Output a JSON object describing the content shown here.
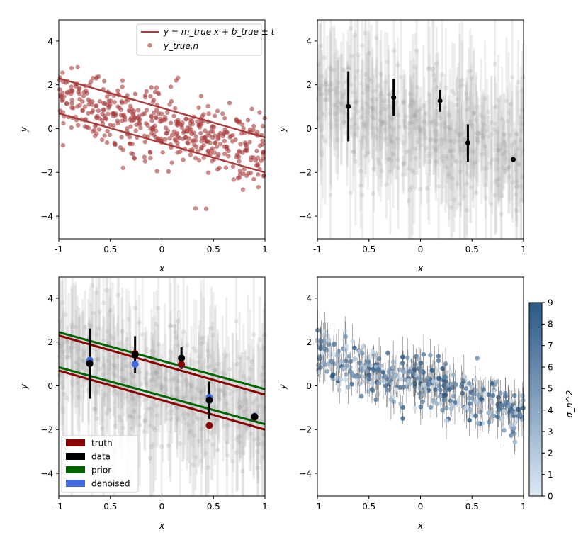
{
  "chart_data": [
    {
      "type": "scatter",
      "panel": "top-left",
      "xlabel": "x",
      "ylabel": "y",
      "xlim": [
        -1,
        1
      ],
      "ylim": [
        -5,
        5
      ],
      "xtick_labels": [
        "-1",
        "0.5",
        "0",
        "0.5",
        "1"
      ],
      "ytick_labels": [
        "−4",
        "−2",
        "0",
        "2",
        "4"
      ],
      "legend_position": "top-right",
      "legend": [
        {
          "label": "y = m_true x + b_true ± t",
          "kind": "line",
          "color": "#a83c3c"
        },
        {
          "label": "y_true,n",
          "kind": "point",
          "color": "#a83c3c"
        }
      ],
      "lines": [
        {
          "name": "upper",
          "slope": -1.35,
          "intercept": 0.98
        },
        {
          "name": "lower",
          "slope": -1.35,
          "intercept": -0.62
        }
      ],
      "points": {
        "count": 500,
        "slope": -1.35,
        "intercept": 0.18,
        "spread": 0.8,
        "color": "#a83c3c"
      }
    },
    {
      "type": "scatter",
      "panel": "top-right",
      "xlabel": "x",
      "ylabel": "y",
      "xlim": [
        -1,
        1
      ],
      "ylim": [
        -5,
        5
      ],
      "xtick_labels": [
        "-1",
        "0.5",
        "0",
        "0.5",
        "1"
      ],
      "ytick_labels": [
        "−4",
        "−2",
        "0",
        "2",
        "4"
      ],
      "background_points": {
        "count": 500,
        "color": "#808080"
      },
      "highlighted": [
        {
          "x": -0.7,
          "y": 1.05,
          "err": 1.6
        },
        {
          "x": -0.26,
          "y": 1.45,
          "err": 0.85
        },
        {
          "x": 0.19,
          "y": 1.3,
          "err": 0.5
        },
        {
          "x": 0.46,
          "y": -0.62,
          "err": 0.85
        },
        {
          "x": 0.9,
          "y": -1.38,
          "err": 0.0
        }
      ]
    },
    {
      "type": "scatter",
      "panel": "bottom-left",
      "xlabel": "x",
      "ylabel": "y",
      "xlim": [
        -1,
        1
      ],
      "ylim": [
        -5,
        5
      ],
      "xtick_labels": [
        "-1",
        "0.5",
        "0",
        "0.5",
        "1"
      ],
      "ytick_labels": [
        "−4",
        "−2",
        "0",
        "2",
        "4"
      ],
      "legend_position": "bottom-left",
      "legend": [
        {
          "label": "truth",
          "color": "#8b0000"
        },
        {
          "label": "data",
          "color": "#000000"
        },
        {
          "label": "prior",
          "color": "#006400"
        },
        {
          "label": "denoised",
          "color": "#4169e1"
        }
      ],
      "truth_lines": [
        {
          "slope": -1.35,
          "intercept": 0.98
        },
        {
          "slope": -1.35,
          "intercept": -0.62
        }
      ],
      "prior_lines": [
        {
          "slope": -1.3,
          "intercept": 1.18
        },
        {
          "slope": -1.3,
          "intercept": -0.42
        }
      ],
      "data_points": [
        {
          "x": -0.7,
          "y": 1.05,
          "err": 1.6
        },
        {
          "x": -0.26,
          "y": 1.45,
          "err": 0.85
        },
        {
          "x": 0.19,
          "y": 1.3,
          "err": 0.5
        },
        {
          "x": 0.46,
          "y": -0.62,
          "err": 0.85
        },
        {
          "x": 0.9,
          "y": -1.38,
          "err": 0.0
        }
      ],
      "truth_points": [
        {
          "x": -0.7,
          "y": 1.05
        },
        {
          "x": -0.26,
          "y": 1.5
        },
        {
          "x": 0.19,
          "y": 1.02
        },
        {
          "x": 0.46,
          "y": -1.78
        },
        {
          "x": 0.9,
          "y": -1.4
        }
      ],
      "denoised_points": [
        {
          "x": -0.7,
          "y": 1.2
        },
        {
          "x": -0.26,
          "y": 1.02
        },
        {
          "x": 0.19,
          "y": 1.0
        },
        {
          "x": 0.46,
          "y": -0.5
        },
        {
          "x": 0.9,
          "y": -1.36
        }
      ]
    },
    {
      "type": "scatter",
      "panel": "bottom-right",
      "xlabel": "x",
      "ylabel": "y",
      "xlim": [
        -1,
        1
      ],
      "ylim": [
        -5,
        5
      ],
      "xtick_labels": [
        "-1",
        "0.5",
        "0",
        "0.5",
        "1"
      ],
      "ytick_labels": [
        "−4",
        "−2",
        "0",
        "2",
        "4"
      ],
      "colorbar": {
        "label": "σ_n^2",
        "range": [
          0,
          9
        ],
        "tick_labels": [
          "0",
          "1",
          "2",
          "3",
          "4",
          "5",
          "6",
          "7",
          "8",
          "9"
        ],
        "color_low": "#dce9f5",
        "color_high": "#2b5885"
      },
      "points": {
        "count": 420,
        "slope": -1.35,
        "intercept": 0.18,
        "spread": 0.6
      }
    }
  ]
}
